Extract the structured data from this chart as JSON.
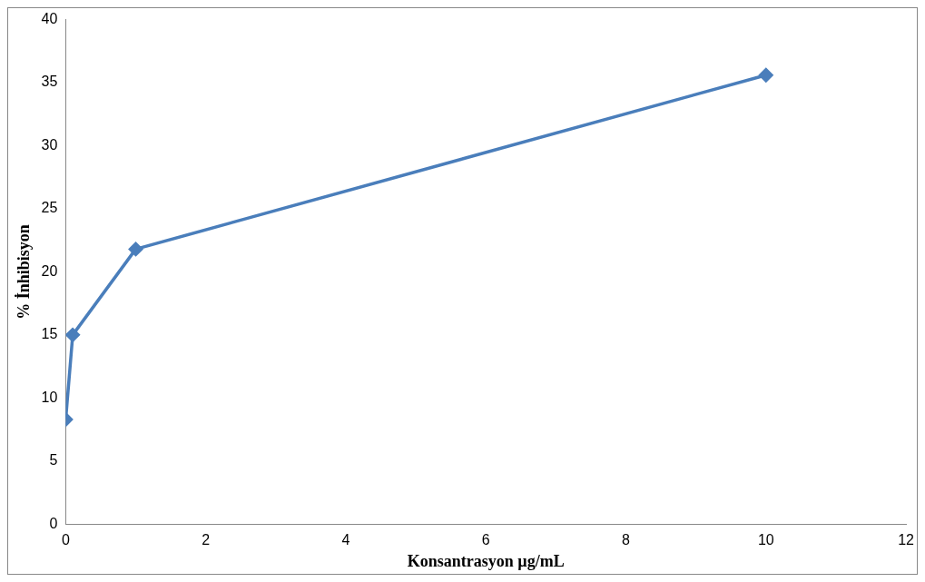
{
  "chart_data": {
    "type": "line",
    "xlabel": "Konsantrasyon µg/mL",
    "ylabel": "% İnhibisyon",
    "series": [
      {
        "color": "#4a7ebb",
        "x": [
          0,
          0.1,
          1,
          10
        ],
        "values": [
          8.3,
          15,
          21.8,
          35.6
        ]
      }
    ],
    "xlim": [
      0,
      12
    ],
    "xticks": [
      0,
      2,
      4,
      6,
      8,
      10,
      12
    ],
    "ylim": [
      0,
      40
    ],
    "yticks": [
      0,
      5,
      10,
      15,
      20,
      25,
      30,
      35,
      40
    ],
    "grid": false,
    "legend": false,
    "marker": "diamond",
    "line_style": "solid"
  }
}
